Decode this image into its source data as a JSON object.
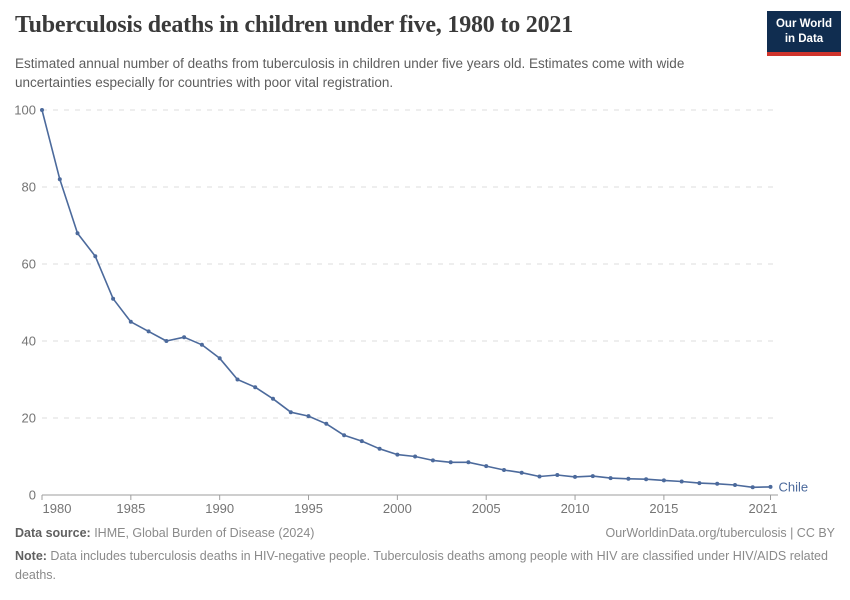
{
  "header": {
    "title": "Tuberculosis deaths in children under five, 1980 to 2021",
    "subtitle": "Estimated annual number of deaths from tuberculosis in children under five years old. Estimates come with wide uncertainties especially for countries with poor vital registration.",
    "logo": {
      "line1": "Our World",
      "line2": "in Data"
    }
  },
  "chart_data": {
    "type": "line",
    "title": "Tuberculosis deaths in children under five, 1980 to 2021",
    "xlabel": "",
    "ylabel": "",
    "x_range": [
      1980,
      2021
    ],
    "ylim": [
      0,
      100
    ],
    "yticks": [
      0,
      20,
      40,
      60,
      80,
      100
    ],
    "xticks": [
      1980,
      1985,
      1990,
      1995,
      2000,
      2005,
      2010,
      2015,
      2021
    ],
    "grid": "horizontal-dashed",
    "legend_position": "end-of-line-label",
    "end_label": "Chile",
    "x": [
      1980,
      1981,
      1982,
      1983,
      1984,
      1985,
      1986,
      1987,
      1988,
      1989,
      1990,
      1991,
      1992,
      1993,
      1994,
      1995,
      1996,
      1997,
      1998,
      1999,
      2000,
      2001,
      2002,
      2003,
      2004,
      2005,
      2006,
      2007,
      2008,
      2009,
      2010,
      2011,
      2012,
      2013,
      2014,
      2015,
      2016,
      2017,
      2018,
      2019,
      2020,
      2021
    ],
    "series": [
      {
        "name": "Chile",
        "color": "#4C6A9C",
        "values": [
          100,
          82,
          68,
          62,
          51,
          45,
          42.5,
          40,
          41,
          39,
          35.5,
          30,
          28,
          25,
          21.5,
          20.5,
          18.5,
          15.5,
          14,
          12,
          10.5,
          10,
          9,
          8.5,
          8.5,
          7.5,
          6.5,
          5.8,
          4.8,
          5.2,
          4.7,
          4.9,
          4.4,
          4.2,
          4.1,
          3.8,
          3.5,
          3.1,
          2.9,
          2.6,
          2.0,
          2.1
        ]
      }
    ]
  },
  "colors": {
    "line": "#4C6A9C",
    "grid": "#dedede",
    "axis": "#9e9e9e",
    "axis_text": "#757575",
    "logo_bg": "#102d50",
    "logo_stripe": "#d0342c"
  },
  "footer": {
    "source_label": "Data source:",
    "source_text": " IHME, Global Burden of Disease (2024)",
    "credit": "OurWorldinData.org/tuberculosis | CC BY",
    "note_label": "Note:",
    "note_text": " Data includes tuberculosis deaths in HIV-negative people. Tuberculosis deaths among people with HIV are classified under HIV/AIDS related deaths."
  }
}
